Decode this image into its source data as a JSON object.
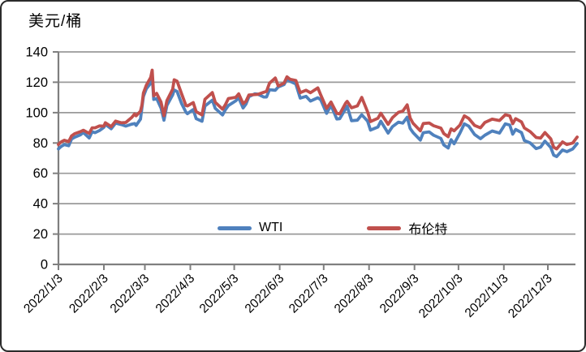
{
  "frame": {
    "background": "#FFFFFF",
    "border_color": "#2B2B2B",
    "axis_color": "#7F7F7F",
    "grid_color": "#9A9A9A",
    "text_color": "#000000"
  },
  "chart_data": {
    "type": "line",
    "title": "美元/桶",
    "unit_label": "美元/桶",
    "grid": true,
    "legend": {
      "position": "inside-bottom-center",
      "entries": [
        "WTI",
        "布伦特"
      ]
    },
    "y_axis": {
      "min": 0,
      "max": 140,
      "step": 20,
      "tick_labels": [
        "0",
        "20",
        "40",
        "60",
        "80",
        "100",
        "120",
        "140"
      ]
    },
    "x_axis": {
      "angle": -45,
      "tick_labels": [
        "2022/1/3",
        "2022/2/3",
        "2022/3/3",
        "2022/4/3",
        "2022/5/3",
        "2022/6/3",
        "2022/7/3",
        "2022/8/3",
        "2022/9/3",
        "2022/10/3",
        "2022/11/3",
        "2022/12/3"
      ]
    },
    "dates": [
      "1/3",
      "1/4",
      "1/5",
      "1/7",
      "1/10",
      "1/12",
      "1/14",
      "1/18",
      "1/20",
      "1/24",
      "1/26",
      "1/28",
      "1/31",
      "2/3",
      "2/4",
      "2/8",
      "2/11",
      "2/15",
      "2/18",
      "2/22",
      "2/24",
      "2/25",
      "2/28",
      "3/1",
      "3/2",
      "3/4",
      "3/7",
      "3/8",
      "3/9",
      "3/11",
      "3/14",
      "3/16",
      "3/18",
      "3/22",
      "3/23",
      "3/25",
      "3/28",
      "3/31",
      "4/1",
      "4/5",
      "4/7",
      "4/11",
      "4/13",
      "4/18",
      "4/20",
      "4/25",
      "4/27",
      "4/29",
      "5/4",
      "5/6",
      "5/9",
      "5/11",
      "5/13",
      "5/17",
      "5/19",
      "5/23",
      "5/25",
      "5/27",
      "5/31",
      "6/2",
      "6/6",
      "6/8",
      "6/10",
      "6/14",
      "6/17",
      "6/21",
      "6/24",
      "6/29",
      "7/1",
      "7/5",
      "7/8",
      "7/12",
      "7/14",
      "7/18",
      "7/19",
      "7/22",
      "7/26",
      "7/29",
      "8/2",
      "8/4",
      "8/9",
      "8/11",
      "8/16",
      "8/19",
      "8/23",
      "8/26",
      "8/29",
      "8/31",
      "9/2",
      "9/7",
      "9/9",
      "9/13",
      "9/16",
      "9/21",
      "9/23",
      "9/26",
      "9/28",
      "9/30",
      "10/4",
      "10/7",
      "10/10",
      "10/14",
      "10/18",
      "10/21",
      "10/26",
      "10/31",
      "11/4",
      "11/7",
      "11/9",
      "11/11",
      "11/15",
      "11/17",
      "11/21",
      "11/25",
      "11/28",
      "12/1",
      "12/5",
      "12/7",
      "12/9",
      "12/13",
      "12/16",
      "12/20",
      "12/23"
    ],
    "series": [
      {
        "name": "WTI",
        "color": "#4F81BD",
        "values": [
          76.1,
          77.0,
          77.8,
          78.9,
          78.2,
          82.6,
          83.8,
          85.4,
          86.9,
          83.3,
          87.4,
          86.8,
          88.2,
          90.3,
          92.3,
          89.4,
          93.1,
          92.1,
          91.1,
          92.4,
          92.8,
          91.6,
          95.7,
          103.4,
          110.6,
          115.7,
          119.4,
          123.7,
          108.7,
          109.3,
          103.0,
          95.0,
          104.7,
          111.8,
          114.9,
          113.9,
          106.0,
          100.3,
          99.3,
          102.0,
          96.0,
          94.3,
          104.3,
          108.2,
          102.8,
          98.5,
          102.0,
          104.7,
          107.8,
          109.8,
          103.1,
          105.7,
          110.5,
          112.4,
          112.2,
          110.3,
          110.3,
          115.1,
          114.7,
          116.9,
          118.5,
          122.1,
          120.7,
          118.9,
          109.6,
          110.7,
          107.6,
          109.8,
          108.4,
          99.5,
          104.8,
          95.8,
          96.0,
          102.6,
          104.2,
          94.7,
          95.0,
          98.6,
          94.4,
          88.5,
          90.5,
          94.3,
          86.5,
          90.8,
          93.7,
          93.1,
          97.0,
          89.6,
          86.9,
          81.9,
          86.8,
          87.3,
          85.1,
          83.0,
          78.7,
          76.7,
          82.2,
          79.5,
          86.5,
          92.6,
          91.1,
          85.6,
          82.8,
          85.1,
          87.9,
          86.5,
          92.6,
          91.8,
          85.8,
          88.9,
          86.9,
          81.6,
          80.0,
          76.3,
          77.2,
          81.2,
          77.0,
          72.0,
          71.0,
          75.4,
          74.3,
          76.1,
          79.6
        ]
      },
      {
        "name": "布伦特",
        "color": "#C0504D",
        "values": [
          79.0,
          80.0,
          80.8,
          81.8,
          80.9,
          84.7,
          86.1,
          87.5,
          88.4,
          86.3,
          90.0,
          90.0,
          91.2,
          91.1,
          93.3,
          90.8,
          94.4,
          93.3,
          93.5,
          96.8,
          99.1,
          97.9,
          101.0,
          105.0,
          112.9,
          118.1,
          123.2,
          128.0,
          111.1,
          112.7,
          106.9,
          98.0,
          107.9,
          115.5,
          121.6,
          120.7,
          112.5,
          104.7,
          104.4,
          106.6,
          100.6,
          98.5,
          108.8,
          113.2,
          106.8,
          102.3,
          105.3,
          109.3,
          110.1,
          112.4,
          105.9,
          107.5,
          111.6,
          111.9,
          112.0,
          113.4,
          114.0,
          119.4,
          122.8,
          117.6,
          119.5,
          123.6,
          122.0,
          121.2,
          113.1,
          114.7,
          113.1,
          116.3,
          111.6,
          102.8,
          107.0,
          99.5,
          99.1,
          106.3,
          107.4,
          103.2,
          104.4,
          110.0,
          100.5,
          94.1,
          96.3,
          99.6,
          92.3,
          96.7,
          100.2,
          101.0,
          105.1,
          96.5,
          93.0,
          88.0,
          92.8,
          93.2,
          91.4,
          89.8,
          86.2,
          84.1,
          89.3,
          88.0,
          91.8,
          97.9,
          96.2,
          91.6,
          90.0,
          93.5,
          95.7,
          94.8,
          98.6,
          97.9,
          92.7,
          96.0,
          93.9,
          89.9,
          87.5,
          83.6,
          83.2,
          86.9,
          82.7,
          77.2,
          76.1,
          80.7,
          79.0,
          80.0,
          83.9
        ]
      }
    ]
  }
}
